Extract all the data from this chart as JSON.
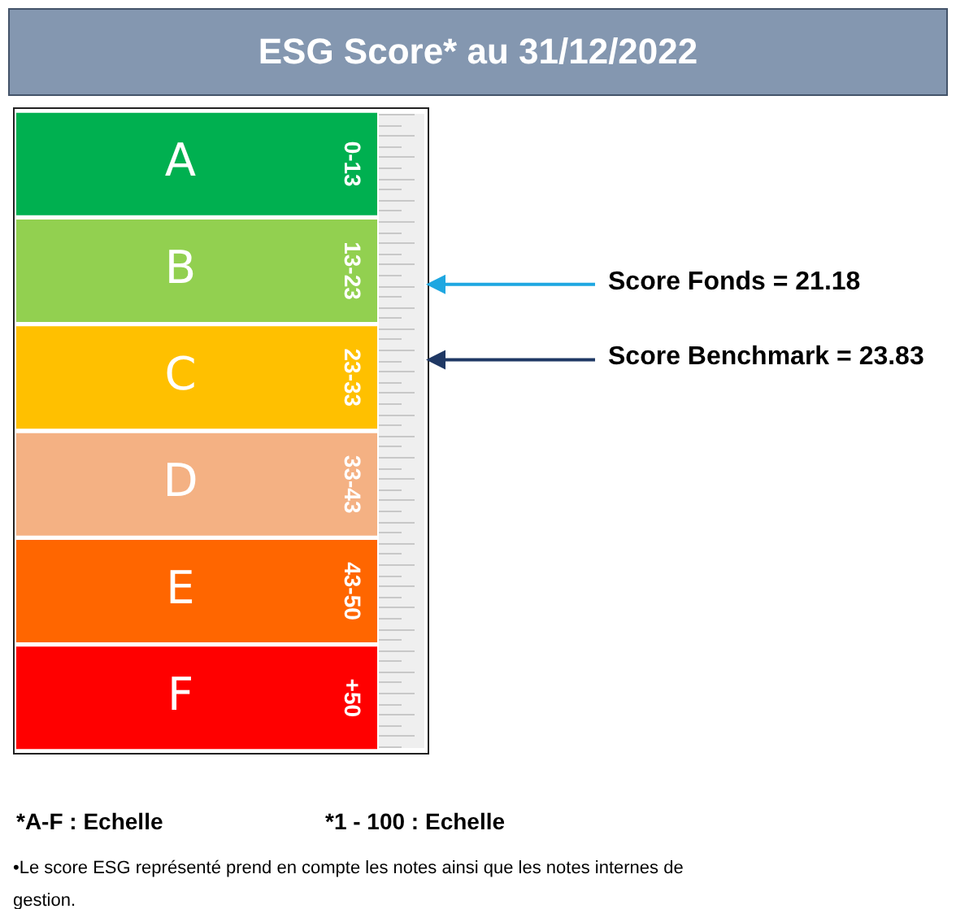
{
  "chart_data": {
    "type": "other",
    "title": "ESG Score* au 31/12/2022",
    "categories": [
      "A",
      "B",
      "C",
      "D",
      "E",
      "F"
    ],
    "colors": [
      "#00b050",
      "#92d050",
      "#ffc000",
      "#f4b183",
      "#ff6600",
      "#ff0000"
    ],
    "value_labels": [
      "0-13",
      "13-23",
      "23-33",
      "33-43",
      "43-50",
      "+50"
    ],
    "data_labels": true,
    "series": [
      {
        "name": "Score Fonds =",
        "values": [
          null,
          21.18,
          null,
          null,
          null,
          null
        ]
      },
      {
        "name": "Score Benchmark =",
        "values": [
          null,
          null,
          23.83,
          null,
          null,
          null
        ]
      }
    ],
    "annotations": [
      "*A-F : Echelle",
      "*1 - 100 : Echelle",
      "•Le score ESG représenté prend en compte les notes ainsi que les notes internes de gestion."
    ]
  }
}
